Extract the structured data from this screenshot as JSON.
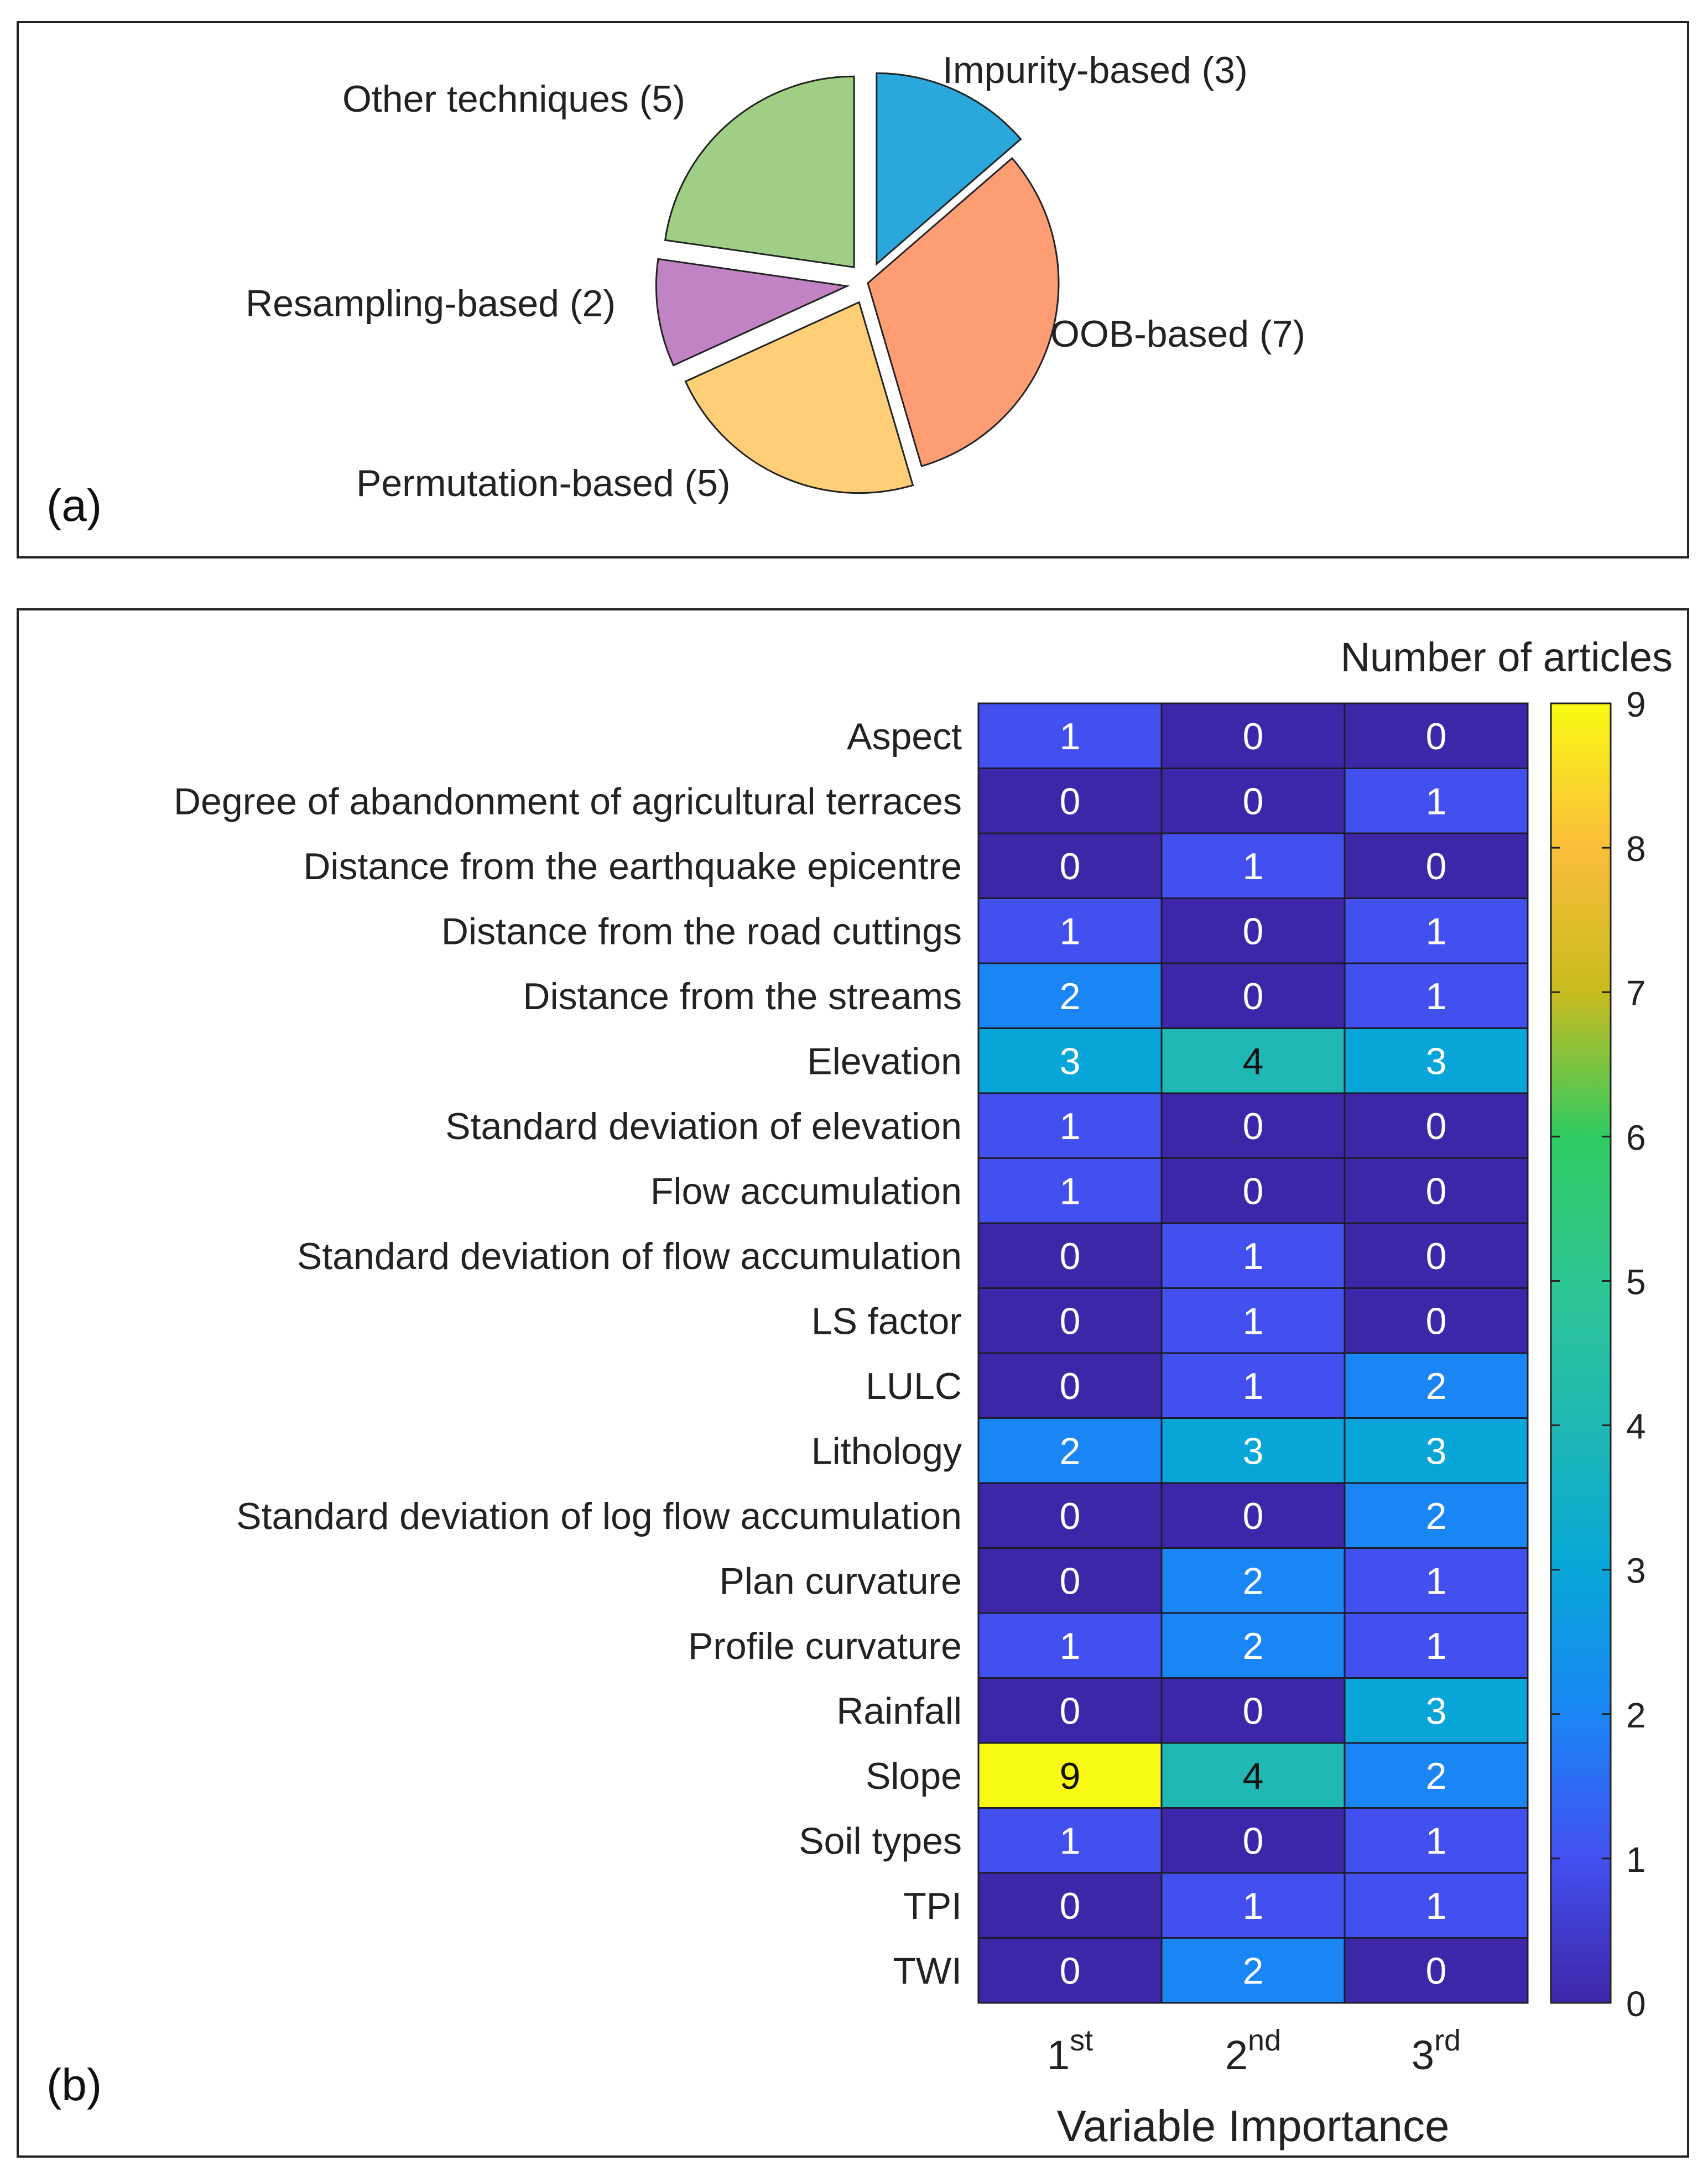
{
  "chart_data": [
    {
      "type": "pie",
      "panel_label": "(a)",
      "title": "",
      "slices": [
        {
          "label": "Impurity-based (3)",
          "value": 3,
          "color": "#2aa8dc",
          "exploded": true
        },
        {
          "label": "OOB-based (7)",
          "value": 7,
          "color": "#fe9c74",
          "exploded": false
        },
        {
          "label": "Permutation-based (5)",
          "value": 5,
          "color": "#fecf76",
          "exploded": true
        },
        {
          "label": "Resampling-based (2)",
          "value": 2,
          "color": "#c283c4",
          "exploded": true
        },
        {
          "label": "Other techniques (5)",
          "value": 5,
          "color": "#9fcf84",
          "exploded": true
        }
      ]
    },
    {
      "type": "heatmap",
      "panel_label": "(b)",
      "xlabel": "Variable Importance",
      "colorbar_label": "Number of articles",
      "colorbar_range": [
        0,
        9
      ],
      "colorbar_ticks": [
        "0",
        "1",
        "2",
        "3",
        "4",
        "5",
        "6",
        "7",
        "8",
        "9"
      ],
      "columns": [
        {
          "main": "1",
          "sup": "st"
        },
        {
          "main": "2",
          "sup": "nd"
        },
        {
          "main": "3",
          "sup": "rd"
        }
      ],
      "rows": [
        "Aspect",
        "Degree of abandonment of agricultural terraces",
        "Distance from the earthquake epicentre",
        "Distance from the road cuttings",
        "Distance from the streams",
        "Elevation",
        "Standard deviation of elevation",
        "Flow accumulation",
        "Standard deviation of flow accumulation",
        "LS factor",
        "LULC",
        "Lithology",
        "Standard deviation of log flow accumulation",
        "Plan curvature",
        "Profile curvature",
        "Rainfall",
        "Slope",
        "Soil types",
        "TPI",
        "TWI"
      ],
      "values": [
        [
          1,
          0,
          0
        ],
        [
          0,
          0,
          1
        ],
        [
          0,
          1,
          0
        ],
        [
          1,
          0,
          1
        ],
        [
          2,
          0,
          1
        ],
        [
          3,
          4,
          3
        ],
        [
          1,
          0,
          0
        ],
        [
          1,
          0,
          0
        ],
        [
          0,
          1,
          0
        ],
        [
          0,
          1,
          0
        ],
        [
          0,
          1,
          2
        ],
        [
          2,
          3,
          3
        ],
        [
          0,
          0,
          2
        ],
        [
          0,
          2,
          1
        ],
        [
          1,
          2,
          1
        ],
        [
          0,
          0,
          3
        ],
        [
          9,
          4,
          2
        ],
        [
          1,
          0,
          1
        ],
        [
          0,
          1,
          1
        ],
        [
          0,
          2,
          0
        ]
      ],
      "colormap_colors": {
        "0": "#3e26a8",
        "1": "#4250f0",
        "2": "#1a86f5",
        "3": "#08a6d8",
        "4": "#1fb8b4",
        "5": "#2ec692",
        "6": "#2fcb61",
        "7": "#c9bb1f",
        "8": "#fbbd3a",
        "9": "#f9fa14"
      }
    }
  ]
}
